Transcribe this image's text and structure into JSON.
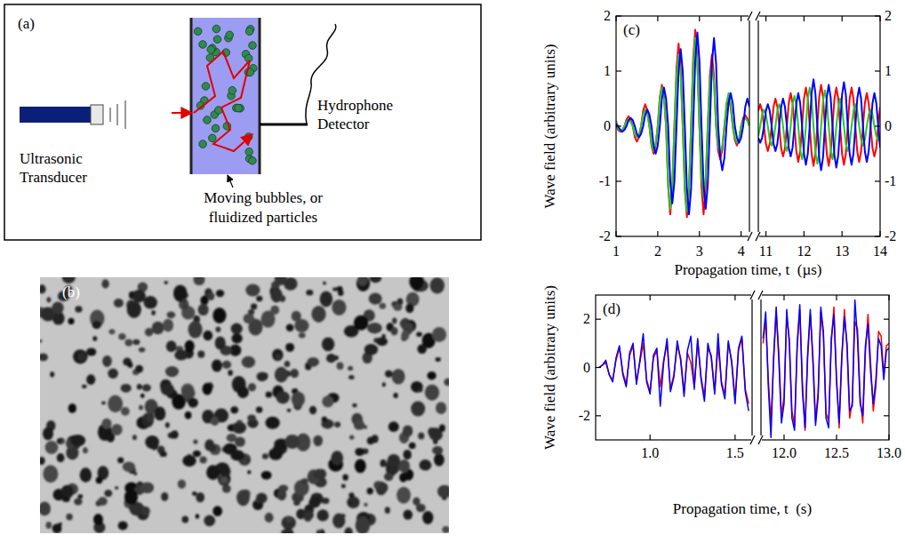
{
  "diagram": {
    "letter": "(a)",
    "transducer_label": [
      "Ultrasonic",
      "Transducer"
    ],
    "detector_label": [
      "Hydrophone",
      "Detector"
    ],
    "sample_label": [
      "Moving bubbles, or",
      "fluidized particles"
    ]
  },
  "photo": {
    "letter": "(b)"
  },
  "chart_data": [
    {
      "type": "line",
      "letter": "(c)",
      "y_label": "Wave field (arbitrary units)",
      "x_label": "Propagation time, t  (µs)",
      "ylim": [
        -2,
        2
      ],
      "yticks": [
        -2,
        -1,
        0,
        1,
        2
      ],
      "y2lim": [
        -2,
        2
      ],
      "y2ticks": [
        -2,
        -1,
        0,
        1,
        2
      ],
      "segments": [
        {
          "xlim": [
            1,
            4.2
          ],
          "xticks": [
            1,
            2,
            3,
            4
          ],
          "x": [
            1,
            1.05,
            1.1,
            1.15,
            1.2,
            1.25,
            1.3,
            1.35,
            1.4,
            1.45,
            1.5,
            1.55,
            1.6,
            1.65,
            1.7,
            1.75,
            1.8,
            1.85,
            1.9,
            1.95,
            2,
            2.05,
            2.1,
            2.15,
            2.2,
            2.25,
            2.3,
            2.35,
            2.4,
            2.45,
            2.5,
            2.55,
            2.6,
            2.65,
            2.7,
            2.75,
            2.8,
            2.85,
            2.9,
            2.95,
            3,
            3.05,
            3.1,
            3.15,
            3.2,
            3.25,
            3.3,
            3.35,
            3.4,
            3.45,
            3.5,
            3.55,
            3.6,
            3.65,
            3.7,
            3.75,
            3.8,
            3.85,
            3.9,
            3.95,
            4,
            4.05,
            4.1,
            4.15,
            4.2
          ]
        },
        {
          "xlim": [
            10.8,
            14
          ],
          "xticks": [
            11,
            12,
            13,
            14
          ],
          "x": [
            10.8,
            10.85,
            10.9,
            10.95,
            11,
            11.05,
            11.1,
            11.15,
            11.2,
            11.25,
            11.3,
            11.35,
            11.4,
            11.45,
            11.5,
            11.55,
            11.6,
            11.65,
            11.7,
            11.75,
            11.8,
            11.85,
            11.9,
            11.95,
            12,
            12.05,
            12.1,
            12.15,
            12.2,
            12.25,
            12.3,
            12.35,
            12.4,
            12.45,
            12.5,
            12.55,
            12.6,
            12.65,
            12.7,
            12.75,
            12.8,
            12.85,
            12.9,
            12.95,
            13,
            13.05,
            13.1,
            13.15,
            13.2,
            13.25,
            13.3,
            13.35,
            13.4,
            13.45,
            13.5,
            13.55,
            13.6,
            13.65,
            13.7,
            13.75,
            13.8,
            13.85,
            13.9,
            13.95,
            14
          ]
        }
      ],
      "series": [
        {
          "color": "#ff0000",
          "values": [
            [
              0,
              -0.07,
              -0.1,
              -0.07,
              0,
              0.12,
              0.18,
              0.12,
              0,
              -0.2,
              -0.28,
              -0.2,
              0,
              0.28,
              0.4,
              0.28,
              0,
              -0.35,
              -0.5,
              -0.35,
              0,
              0.53,
              0.75,
              0.55,
              0,
              -1.1,
              -1.6,
              -1.1,
              0,
              1.05,
              1.5,
              1.05,
              0,
              -1.15,
              -1.65,
              -1.15,
              0,
              1.22,
              1.75,
              1.22,
              0,
              -1.1,
              -1.6,
              -1.1,
              0,
              0.9,
              1.3,
              0.9,
              0,
              -0.45,
              -0.6,
              -0.42,
              0,
              0.35,
              0.5,
              0.35,
              0,
              -0.25,
              -0.35,
              -0.25,
              0,
              0.15,
              0.2,
              0.14,
              0
            ],
            [
              0.28,
              0.4,
              0.28,
              0,
              -0.32,
              -0.45,
              -0.32,
              0,
              0.35,
              0.5,
              0.35,
              0,
              -0.4,
              -0.55,
              -0.4,
              0,
              0.42,
              0.6,
              0.42,
              0,
              -0.46,
              -0.65,
              -0.46,
              0,
              0.5,
              0.7,
              0.5,
              0,
              -0.5,
              -0.72,
              -0.5,
              0,
              0.53,
              0.75,
              0.53,
              0,
              -0.5,
              -0.72,
              -0.5,
              0,
              0.5,
              0.7,
              0.5,
              0,
              -0.5,
              -0.7,
              -0.5,
              0,
              0.5,
              0.7,
              0.5,
              0,
              -0.46,
              -0.65,
              -0.46,
              0,
              0.42,
              0.6,
              0.42,
              0,
              -0.4,
              -0.55,
              -0.4,
              0,
              0.35
            ]
          ]
        },
        {
          "color": "#22cc22",
          "values": [
            [
              0.1,
              -0.05,
              -0.08,
              -0.06,
              0,
              0.08,
              0.12,
              0.08,
              0,
              -0.14,
              -0.2,
              -0.14,
              0,
              0.21,
              0.3,
              0.21,
              0,
              -0.32,
              -0.45,
              -0.32,
              0,
              0.5,
              0.7,
              0.5,
              0,
              -1.06,
              -1.5,
              -1.06,
              0,
              0.92,
              1.3,
              0.92,
              0,
              -1.1,
              -1.55,
              -1.1,
              0,
              1.14,
              1.6,
              1.14,
              0,
              -0.92,
              -1.3,
              -0.92,
              0,
              0.78,
              1.1,
              0.78,
              0,
              -0.35,
              -0.5,
              -0.35,
              0,
              0.42,
              0.6,
              0.42,
              0,
              -0.21,
              -0.3,
              -0.21,
              0,
              0.1,
              0.15,
              0.1,
              0
            ],
            [
              -0.18,
              0,
              0.21,
              0.3,
              0.21,
              0,
              -0.25,
              -0.35,
              -0.25,
              0,
              0.28,
              0.4,
              0.28,
              0,
              -0.32,
              -0.45,
              -0.32,
              0,
              0.39,
              0.55,
              0.39,
              0,
              -0.43,
              -0.6,
              -0.43,
              0,
              0.5,
              0.7,
              0.5,
              0,
              -0.48,
              -0.68,
              -0.48,
              0,
              0.46,
              0.65,
              0.46,
              0,
              -0.42,
              -0.6,
              -0.42,
              0,
              0.35,
              0.5,
              0.35,
              0,
              -0.32,
              -0.45,
              -0.32,
              0,
              0.28,
              0.4,
              0.28,
              0,
              -0.25,
              -0.35,
              -0.25,
              0,
              0.21,
              0.3,
              0.21,
              0,
              -0.18,
              -0.25,
              -0.18
            ]
          ]
        },
        {
          "color": "#0000ff",
          "values": [
            [
              0.04,
              0,
              -0.07,
              -0.1,
              -0.07,
              0,
              0.11,
              0.15,
              0.11,
              0,
              -0.14,
              -0.2,
              -0.14,
              0,
              0.21,
              0.3,
              0.21,
              0,
              -0.35,
              -0.5,
              -0.35,
              0,
              0.5,
              0.7,
              0.5,
              0,
              -1,
              -1.4,
              -1,
              0,
              1,
              1.4,
              1,
              0,
              -1.14,
              -1.6,
              -1.14,
              0,
              1.2,
              1.7,
              1.2,
              0,
              -1.07,
              -1.5,
              -1.07,
              0,
              1.14,
              1.6,
              1.14,
              0,
              -0.57,
              -0.8,
              -0.57,
              0,
              0.42,
              0.6,
              0.42,
              0,
              -0.21,
              -0.3,
              -0.21,
              0,
              0.35,
              0.5,
              0.35
            ],
            [
              -0.21,
              -0.3,
              -0.21,
              0,
              0.28,
              0.4,
              0.28,
              0,
              -0.32,
              -0.45,
              -0.32,
              0,
              0.35,
              0.5,
              0.35,
              0,
              -0.39,
              -0.55,
              -0.39,
              0,
              0.42,
              0.6,
              0.42,
              0,
              -0.5,
              -0.7,
              -0.5,
              0,
              0.6,
              0.85,
              0.6,
              0,
              -0.57,
              -0.8,
              -0.57,
              0,
              0.53,
              0.75,
              0.53,
              0,
              -0.53,
              -0.75,
              -0.53,
              0,
              0.57,
              0.8,
              0.57,
              0,
              -0.5,
              -0.7,
              -0.5,
              0,
              0.5,
              0.7,
              0.5,
              0,
              -0.46,
              -0.65,
              -0.46,
              0,
              0.42,
              0.6,
              0.42,
              0,
              -0.39
            ]
          ]
        }
      ]
    },
    {
      "type": "line",
      "letter": "(d)",
      "y_label": "Wave field (arbitrary units)",
      "x_label": "Propagation time, t  (s)",
      "ylim": [
        -3,
        3
      ],
      "yticks": [
        -2,
        0,
        2
      ],
      "segments": [
        {
          "xlim": [
            0.68,
            1.6
          ],
          "xticks": [
            {
              "value": 1,
              "label": "1.0"
            },
            {
              "value": 1.5,
              "label": "1.5"
            }
          ],
          "x": [
            0.7,
            0.72,
            0.74,
            0.76,
            0.78,
            0.8,
            0.82,
            0.84,
            0.86,
            0.88,
            0.9,
            0.92,
            0.94,
            0.96,
            0.98,
            1,
            1.02,
            1.04,
            1.06,
            1.08,
            1.1,
            1.12,
            1.14,
            1.16,
            1.18,
            1.2,
            1.22,
            1.24,
            1.26,
            1.28,
            1.3,
            1.32,
            1.34,
            1.36,
            1.38,
            1.4,
            1.42,
            1.44,
            1.46,
            1.48,
            1.5,
            1.52,
            1.54,
            1.56,
            1.58
          ]
        },
        {
          "xlim": [
            11.78,
            13
          ],
          "xticks": [
            {
              "value": 12,
              "label": "12.0"
            },
            {
              "value": 12.5,
              "label": "12.5"
            },
            {
              "value": 13,
              "label": "13.0"
            }
          ],
          "x": [
            11.8,
            11.825,
            11.85,
            11.875,
            11.9,
            11.925,
            11.95,
            11.975,
            12,
            12.025,
            12.05,
            12.075,
            12.1,
            12.125,
            12.15,
            12.175,
            12.2,
            12.225,
            12.25,
            12.275,
            12.3,
            12.325,
            12.35,
            12.375,
            12.4,
            12.425,
            12.45,
            12.475,
            12.5,
            12.525,
            12.55,
            12.575,
            12.6,
            12.625,
            12.65,
            12.675,
            12.7,
            12.725,
            12.75,
            12.775,
            12.8,
            12.825,
            12.85,
            12.875,
            12.9,
            12.925,
            12.95,
            12.975,
            13
          ]
        }
      ],
      "series": [
        {
          "color": "#ff0000",
          "values": [
            [
              0,
              0.1,
              0.2,
              -0.3,
              -0.5,
              0.3,
              0.8,
              -0.2,
              -0.7,
              0.5,
              0.9,
              -0.6,
              0.2,
              1.0,
              -0.5,
              -1.0,
              0.4,
              0.7,
              -0.8,
              0.3,
              1.0,
              -0.9,
              -0.3,
              0.9,
              0.4,
              -1.0,
              0.6,
              0.2,
              -0.8,
              1.1,
              -0.4,
              -1.2,
              0.8,
              0.5,
              -1.0,
              0.9,
              -0.6,
              -1.1,
              1.0,
              0.3,
              -1.3,
              0.7,
              1.2,
              -0.9,
              -1.5
            ],
            [
              1.0,
              2.0,
              -0.5,
              -2.3,
              0.2,
              2.3,
              0.6,
              -2.0,
              -1.2,
              2.1,
              1.2,
              -1.8,
              -2.4,
              0.8,
              2.4,
              -0.6,
              -2.6,
              0.4,
              2.2,
              0.5,
              -2.2,
              -1.0,
              2.3,
              1.3,
              -1.9,
              -2.2,
              1.0,
              2.5,
              -0.4,
              -2.5,
              0.3,
              2.4,
              0.8,
              -2.1,
              -1.4,
              1.9,
              1.6,
              -1.2,
              -2.3,
              0.6,
              2.2,
              0.2,
              -1.8,
              -0.8,
              1.5,
              1.3,
              -0.3,
              0.9,
              1.0
            ]
          ]
        },
        {
          "color": "#0000ff",
          "values": [
            [
              0,
              0.1,
              0.3,
              -0.3,
              -0.6,
              0.4,
              0.9,
              -0.3,
              -0.8,
              0.6,
              1.0,
              -0.7,
              0.3,
              1.4,
              -0.6,
              -1.1,
              0.5,
              0.8,
              -1.6,
              0.2,
              1.2,
              -1.0,
              -0.4,
              1.1,
              0.3,
              -1.2,
              0.7,
              1.3,
              -0.9,
              1.2,
              -0.5,
              -1.4,
              1.0,
              0.4,
              -1.1,
              1.4,
              -0.7,
              -1.3,
              1.1,
              0.2,
              -1.5,
              0.8,
              1.3,
              -1.0,
              -1.8
            ],
            [
              1.2,
              2.3,
              -0.8,
              -2.9,
              0.4,
              2.5,
              0.3,
              -2.3,
              -1.5,
              2.4,
              1.0,
              -2.1,
              -2.6,
              1.0,
              2.6,
              -1.0,
              -2.5,
              0.6,
              2.4,
              0.2,
              -2.4,
              -1.2,
              2.5,
              1.5,
              -2.1,
              -2.5,
              1.2,
              2.2,
              -0.6,
              -2.3,
              0.5,
              2.1,
              1.0,
              -1.8,
              -1.6,
              2.8,
              1.2,
              -1.5,
              -2.0,
              0.9,
              1.8,
              -0.2,
              -1.5,
              -0.5,
              1.2,
              0.9,
              -0.5,
              0.7,
              0.8
            ]
          ]
        }
      ]
    }
  ]
}
